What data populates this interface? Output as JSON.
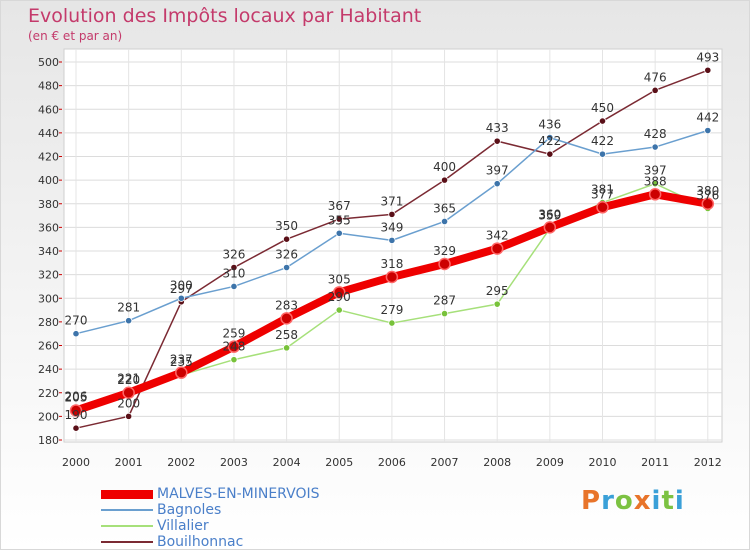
{
  "title": "Evolution des Impôts locaux par Habitant",
  "subtitle": "(en € et par an)",
  "brand": {
    "name": "Proxiti",
    "colors": [
      "#e8742a",
      "#3aa0d8",
      "#7cc242",
      "#e8742a",
      "#3aa0d8",
      "#7cc242",
      "#3aa0d8"
    ]
  },
  "chart_data": {
    "type": "line",
    "title": "Evolution des Impôts locaux par Habitant",
    "subtitle": "(en € et par an)",
    "xlabel": "",
    "ylabel": "",
    "ylim": [
      180,
      500
    ],
    "yticks": [
      180,
      200,
      220,
      240,
      260,
      280,
      300,
      320,
      340,
      360,
      380,
      400,
      420,
      440,
      460,
      480,
      500
    ],
    "grid": true,
    "legend_position": "bottom-left",
    "categories": [
      "2000",
      "2001",
      "2002",
      "2003",
      "2004",
      "2005",
      "2006",
      "2007",
      "2008",
      "2009",
      "2010",
      "2011",
      "2012"
    ],
    "series": [
      {
        "name": "Bouilhonnac",
        "color": "#7b2a33",
        "point_color": "#5a1018",
        "width": 1.5,
        "values": [
          190,
          200,
          297,
          326,
          350,
          367,
          371,
          400,
          433,
          422,
          450,
          476,
          493
        ]
      },
      {
        "name": "Bagnoles",
        "color": "#6a9fcf",
        "point_color": "#3d74aa",
        "width": 1.5,
        "values": [
          270,
          281,
          300,
          310,
          326,
          355,
          349,
          365,
          397,
          436,
          422,
          428,
          442
        ]
      },
      {
        "name": "Villalier",
        "color": "#a6e07a",
        "point_color": "#78c23a",
        "width": 1.5,
        "values": [
          206,
          221,
          235,
          248,
          258,
          290,
          279,
          287,
          295,
          359,
          381,
          397,
          376
        ]
      },
      {
        "name": "MALVES-EN-MINERVOIS",
        "color": "#ee0000",
        "point_color": "#cc0000",
        "width": 8,
        "values": [
          205,
          220,
          237,
          259,
          283,
          305,
          318,
          329,
          342,
          360,
          377,
          388,
          380
        ]
      }
    ]
  }
}
